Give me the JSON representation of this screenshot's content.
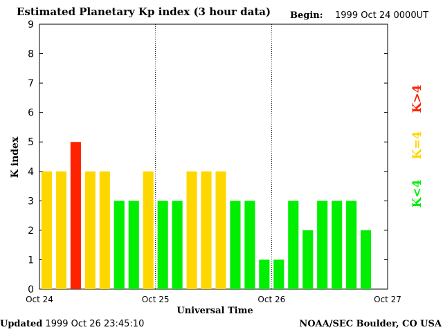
{
  "header": {
    "title": "Estimated Planetary Kp index (3 hour data)",
    "begin_label": "Begin:",
    "begin_value": "1999 Oct 24 0000UT"
  },
  "footer": {
    "updated_label": "Updated",
    "updated_value": "1999 Oct 26 23:45:10",
    "source": "NOAA/SEC Boulder, CO USA"
  },
  "colors": {
    "low": "#00ee00",
    "equal": "#ffd700",
    "high": "#ff2200"
  },
  "chart_data": {
    "type": "bar",
    "title": "Estimated Planetary Kp index (3 hour data)",
    "xlabel": "Universal Time",
    "ylabel": "K index",
    "ylim": [
      0,
      9
    ],
    "yticks": [
      "0",
      "1",
      "2",
      "3",
      "4",
      "5",
      "6",
      "7",
      "8",
      "9"
    ],
    "xticks": [
      "Oct 24",
      "Oct 25",
      "Oct 26",
      "Oct 27"
    ],
    "interval_hours": 3,
    "values": [
      4,
      4,
      5,
      4,
      4,
      3,
      3,
      4,
      3,
      3,
      4,
      4,
      4,
      3,
      3,
      1,
      1,
      3,
      2,
      3,
      3,
      3,
      2
    ],
    "legend": [
      "K<4",
      "K=4",
      "K>4"
    ]
  }
}
